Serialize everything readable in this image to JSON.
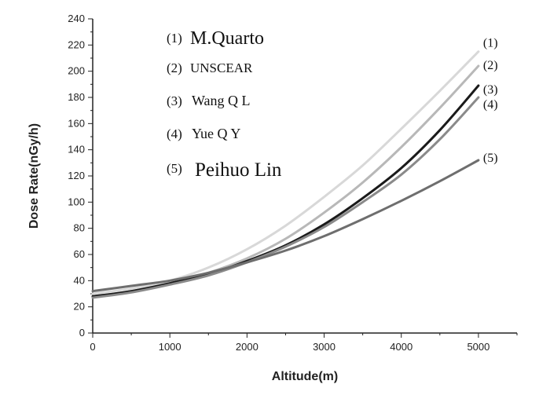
{
  "chart_data": {
    "type": "line",
    "xlabel": "Altitude(m)",
    "ylabel": "Dose Rate(nGy/h)",
    "xlim": [
      0,
      5500
    ],
    "ylim": [
      0,
      240
    ],
    "xticks": [
      0,
      1000,
      2000,
      3000,
      4000,
      5000
    ],
    "yticks": [
      0,
      20,
      40,
      60,
      80,
      100,
      120,
      140,
      160,
      180,
      200,
      220,
      240
    ],
    "grid": false,
    "legend_position": "top-left",
    "series": [
      {
        "id": "(1)",
        "name": "M.Quarto",
        "color": "#d8d8d8",
        "x": [
          0,
          500,
          1000,
          1500,
          2000,
          2500,
          3000,
          3500,
          4000,
          4500,
          5000
        ],
        "y": [
          30,
          34,
          40,
          50,
          64,
          82,
          104,
          128,
          156,
          185,
          215
        ]
      },
      {
        "id": "(2)",
        "name": "UNSCEAR",
        "color": "#b8b8b8",
        "x": [
          0,
          500,
          1000,
          1500,
          2000,
          2500,
          3000,
          3500,
          4000,
          4500,
          5000
        ],
        "y": [
          28,
          32,
          38,
          46,
          57,
          72,
          92,
          115,
          142,
          172,
          204
        ]
      },
      {
        "id": "(3)",
        "name": "Wang Q L",
        "color": "#1a1a1a",
        "x": [
          0,
          500,
          1000,
          1500,
          2000,
          2500,
          3000,
          3500,
          4000,
          4500,
          5000
        ],
        "y": [
          28,
          32,
          38,
          45,
          55,
          67,
          83,
          103,
          126,
          155,
          189
        ]
      },
      {
        "id": "(4)",
        "name": "Yue Q Y",
        "color": "#8a8a8a",
        "x": [
          0,
          500,
          1000,
          1500,
          2000,
          2500,
          3000,
          3500,
          4000,
          4500,
          5000
        ],
        "y": [
          27,
          31,
          37,
          44,
          54,
          66,
          81,
          100,
          121,
          148,
          180
        ]
      },
      {
        "id": "(5)",
        "name": "Peihuo Lin",
        "color": "#6e6e6e",
        "x": [
          0,
          500,
          1000,
          1500,
          2000,
          2500,
          3000,
          3500,
          4000,
          4500,
          5000
        ],
        "y": [
          32,
          36,
          40,
          46,
          54,
          63,
          74,
          87,
          101,
          116,
          132
        ]
      }
    ]
  },
  "legend": {
    "items": [
      {
        "num": "(1)",
        "name": "M.Quarto"
      },
      {
        "num": "(2)",
        "name": "UNSCEAR"
      },
      {
        "num": "(3)",
        "name": "Wang Q L"
      },
      {
        "num": "(4)",
        "name": "Yue Q Y"
      },
      {
        "num": "(5)",
        "name": "Peihuo Lin"
      }
    ]
  }
}
